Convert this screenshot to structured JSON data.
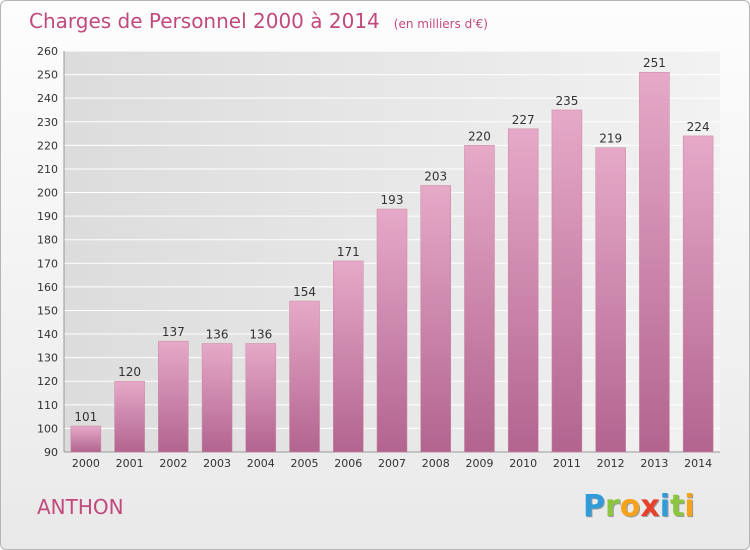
{
  "chart_data": {
    "type": "bar",
    "title": "Charges de Personnel 2000 à 2014",
    "subtitle": "(en milliers d'€)",
    "categories": [
      "2000",
      "2001",
      "2002",
      "2003",
      "2004",
      "2005",
      "2006",
      "2007",
      "2008",
      "2009",
      "2010",
      "2011",
      "2012",
      "2013",
      "2014"
    ],
    "values": [
      101,
      120,
      137,
      136,
      136,
      154,
      171,
      193,
      203,
      220,
      227,
      235,
      219,
      251,
      224
    ],
    "ylim": [
      90,
      260
    ],
    "yticks": [
      90,
      100,
      110,
      120,
      130,
      140,
      150,
      160,
      170,
      180,
      190,
      200,
      210,
      220,
      230,
      240,
      250,
      260
    ],
    "grid": true,
    "bar_color": "#d47ba6"
  },
  "commune": "ANTHON",
  "logo": {
    "text": "Proxiti",
    "letters": [
      {
        "ch": "P",
        "color": "#2f9bd8"
      },
      {
        "ch": "r",
        "color": "#8cc63f"
      },
      {
        "ch": "o",
        "color": "#f7a21b"
      },
      {
        "ch": "x",
        "color": "#e8412c"
      },
      {
        "ch": "i",
        "color": "#2f9bd8"
      },
      {
        "ch": "t",
        "color": "#8cc63f"
      },
      {
        "ch": "i",
        "color": "#f7a21b"
      }
    ]
  },
  "colors": {
    "accent": "#c2497d",
    "grid": "#ffffff"
  }
}
